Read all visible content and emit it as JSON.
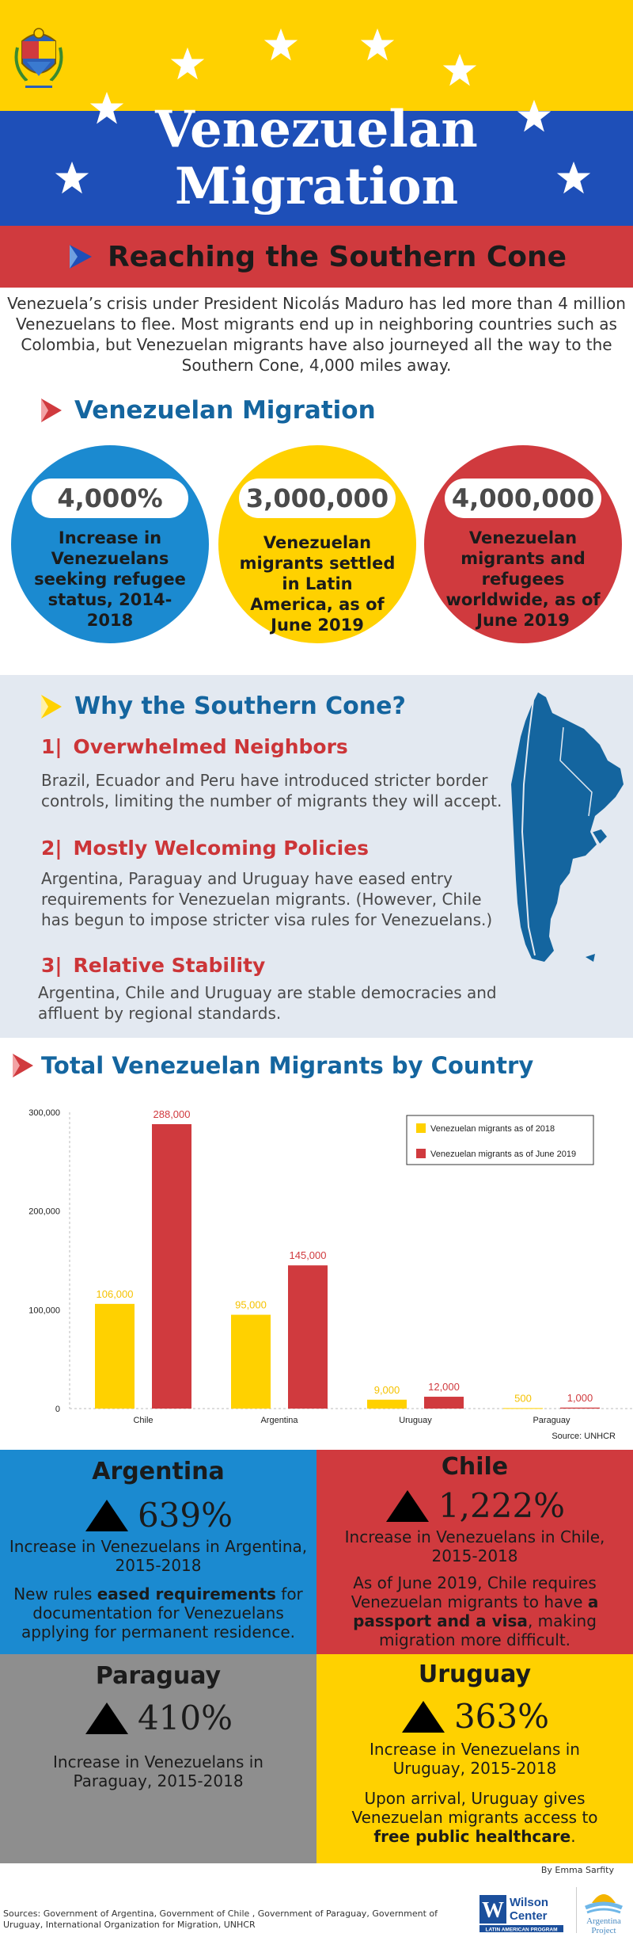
{
  "header": {
    "title_line1": "Venezuelan",
    "title_line2": "Migration",
    "subtitle": "Reaching the Southern Cone",
    "flag_colors": {
      "yellow": "#FFD100",
      "blue": "#1E4FB8",
      "red": "#D03A3E"
    }
  },
  "intro": "Venezuela’s crisis under President Nicolás Maduro has led more than 4 million Venezuelans to flee. Most migrants end up in neighboring countries such as Colombia, but Venezuelan migrants have also journeyed all the way to the Southern Cone, 4,000 miles away.",
  "stats": {
    "heading": "Venezuelan Migration",
    "items": [
      {
        "value": "4,000%",
        "label": "Increase in Venezuelans seeking refugee status, 2014-2018",
        "color": "#1B8AD0"
      },
      {
        "value": "3,000,000",
        "label": "Venezuelan migrants settled in Latin America, as of June 2019",
        "color": "#FFD100"
      },
      {
        "value": "4,000,000",
        "label": "Venezuelan migrants and refugees worldwide, as of June 2019",
        "color": "#D03A3E"
      }
    ]
  },
  "why": {
    "heading": "Why the Southern Cone?",
    "items": [
      {
        "num": "1|",
        "title": "Overwhelmed Neighbors",
        "body": "Brazil, Ecuador and Peru have introduced stricter border controls, limiting the number of migrants they will accept."
      },
      {
        "num": "2|",
        "title": "Mostly Welcoming Policies",
        "body": "Argentina, Paraguay and Uruguay have eased entry requirements for Venezuelan migrants. (However, Chile has begun to impose stricter visa rules for Venezuelans.)"
      },
      {
        "num": "3|",
        "title": "Relative Stability",
        "body": "Argentina, Chile and Uruguay are stable democracies and affluent by regional standards."
      }
    ]
  },
  "chart_heading": "Total Venezuelan Migrants by Country",
  "chart_data": {
    "type": "bar",
    "title": "Total Venezuelan Migrants by Country",
    "categories": [
      "Chile",
      "Argentina",
      "Uruguay",
      "Paraguay"
    ],
    "series": [
      {
        "name": "Venezuelan migrants as of 2018",
        "values": [
          106000,
          95000,
          9000,
          500
        ],
        "labels": [
          "106,000",
          "95,000",
          "9,000",
          "500"
        ],
        "color": "#FFD100"
      },
      {
        "name": "Venezuelan migrants as of June 2019",
        "values": [
          288000,
          145000,
          12000,
          1000
        ],
        "labels": [
          "288,000",
          "145,000",
          "12,000",
          "1,000"
        ],
        "color": "#D03A3E"
      }
    ],
    "yticks": [
      0,
      100000,
      200000,
      300000
    ],
    "ytick_labels": [
      "0",
      "100,000",
      "200,000",
      "300,000"
    ],
    "ylim": [
      0,
      300000
    ],
    "legend": "top-right",
    "source": "Source: UNHCR"
  },
  "countries": [
    {
      "name": "Argentina",
      "pct": "639%",
      "desc": "Increase in Venezuelans in Argentina, 2015-2018",
      "note_pre": "New rules ",
      "note_bold": "eased requirements",
      "note_post": " for documentation for Venezuelans applying for permanent residence.",
      "color": "#1B8AD0"
    },
    {
      "name": "Chile",
      "pct": "1,222%",
      "desc": "Increase in Venezuelans in Chile, 2015-2018",
      "note_pre": "As of June 2019, Chile requires Venezuelan migrants to have ",
      "note_bold": "a passport and a visa",
      "note_post": ", making migration more difficult.",
      "color": "#D03A3E"
    },
    {
      "name": "Paraguay",
      "pct": "410%",
      "desc": "Increase in Venezuelans in Paraguay, 2015-2018",
      "note_pre": "",
      "note_bold": "",
      "note_post": "",
      "color": "#8E8E8E"
    },
    {
      "name": "Uruguay",
      "pct": "363%",
      "desc": "Increase in Venezuelans in Uruguay, 2015-2018",
      "note_pre": "Upon arrival, Uruguay gives Venezuelan migrants access to ",
      "note_bold": "free public healthcare",
      "note_post": ".",
      "color": "#FFD100"
    }
  ],
  "footer": {
    "byline": "By Emma Sarfity",
    "sources": "Sources: Government of Argentina, Government of Chile , Government of Paraguay, Government of Uruguay, International Organization for Migration, UNHCR",
    "wilson": {
      "name_line1": "Wilson",
      "name_line2": "Center",
      "program": "LATIN AMERICAN PROGRAM"
    },
    "argentina_project": {
      "line1": "Argentina",
      "line2": "Project"
    }
  }
}
